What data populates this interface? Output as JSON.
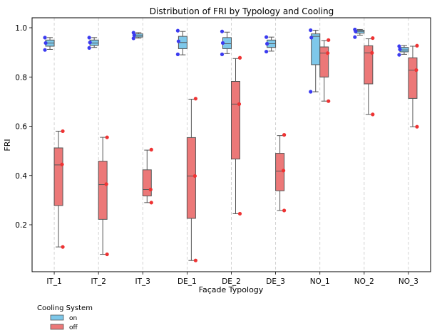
{
  "chart_data": {
    "type": "box",
    "title": "Distribution of FRI by Typology and Cooling",
    "xlabel": "Façade Typology",
    "ylabel": "FRI",
    "categories": [
      "IT_1",
      "IT_2",
      "IT_3",
      "DE_1",
      "DE_2",
      "DE_3",
      "NO_1",
      "NO_2",
      "NO_3"
    ],
    "ylim": [
      0.01,
      1.04
    ],
    "yticks": [
      0.2,
      0.4,
      0.6,
      0.8,
      1.0
    ],
    "ytick_labels": [
      "0.2",
      "0.4",
      "0.6",
      "0.8",
      "1.0"
    ],
    "grid": "vertical dashed at categories",
    "legend": {
      "title": "Cooling System",
      "placement": "below plot, left",
      "entries": [
        "on",
        "off"
      ]
    },
    "series": [
      {
        "name": "on",
        "color": "#7ec8ea",
        "point_color": "#3b3bf0",
        "boxes": [
          {
            "whislo": 0.912,
            "q1": 0.925,
            "med": 0.938,
            "q3": 0.95,
            "whishi": 0.96,
            "points": [
              0.91,
              0.938,
              0.96
            ]
          },
          {
            "whislo": 0.92,
            "q1": 0.928,
            "med": 0.938,
            "q3": 0.95,
            "whishi": 0.96,
            "points": [
              0.918,
              0.94,
              0.96
            ]
          },
          {
            "whislo": 0.958,
            "q1": 0.962,
            "med": 0.968,
            "q3": 0.975,
            "whishi": 0.98,
            "points": [
              0.957,
              0.97,
              0.98
            ]
          },
          {
            "whislo": 0.89,
            "q1": 0.915,
            "med": 0.94,
            "q3": 0.965,
            "whishi": 0.985,
            "points": [
              0.892,
              0.945,
              0.988
            ]
          },
          {
            "whislo": 0.895,
            "q1": 0.915,
            "med": 0.935,
            "q3": 0.96,
            "whishi": 0.982,
            "points": [
              0.892,
              0.938,
              0.985
            ]
          },
          {
            "whislo": 0.905,
            "q1": 0.92,
            "med": 0.935,
            "q3": 0.95,
            "whishi": 0.962,
            "points": [
              0.903,
              0.935,
              0.962
            ]
          },
          {
            "whislo": 0.74,
            "q1": 0.85,
            "med": 0.965,
            "q3": 0.975,
            "whishi": 0.99,
            "points": [
              0.74,
              0.96,
              0.99
            ]
          },
          {
            "whislo": 0.97,
            "q1": 0.978,
            "med": 0.985,
            "q3": 0.99,
            "whishi": 0.993,
            "points": [
              0.962,
              0.985,
              0.993
            ]
          },
          {
            "whislo": 0.892,
            "q1": 0.902,
            "med": 0.91,
            "q3": 0.92,
            "whishi": 0.928,
            "points": [
              0.89,
              0.912,
              0.925
            ]
          }
        ]
      },
      {
        "name": "off",
        "color": "#ec7878",
        "point_color": "#ee3333",
        "boxes": [
          {
            "whislo": 0.11,
            "q1": 0.278,
            "med": 0.443,
            "q3": 0.512,
            "whishi": 0.58,
            "points": [
              0.11,
              0.445,
              0.58
            ]
          },
          {
            "whislo": 0.08,
            "q1": 0.222,
            "med": 0.363,
            "q3": 0.458,
            "whishi": 0.555,
            "points": [
              0.08,
              0.365,
              0.555
            ]
          },
          {
            "whislo": 0.29,
            "q1": 0.317,
            "med": 0.343,
            "q3": 0.423,
            "whishi": 0.503,
            "points": [
              0.29,
              0.343,
              0.505
            ]
          },
          {
            "whislo": 0.055,
            "q1": 0.226,
            "med": 0.398,
            "q3": 0.554,
            "whishi": 0.71,
            "points": [
              0.055,
              0.398,
              0.712
            ]
          },
          {
            "whislo": 0.245,
            "q1": 0.467,
            "med": 0.69,
            "q3": 0.782,
            "whishi": 0.875,
            "points": [
              0.245,
              0.69,
              0.878
            ]
          },
          {
            "whislo": 0.258,
            "q1": 0.338,
            "med": 0.418,
            "q3": 0.49,
            "whishi": 0.562,
            "points": [
              0.258,
              0.42,
              0.565
            ]
          },
          {
            "whislo": 0.702,
            "q1": 0.8,
            "med": 0.897,
            "q3": 0.922,
            "whishi": 0.948,
            "points": [
              0.702,
              0.897,
              0.95
            ]
          },
          {
            "whislo": 0.648,
            "q1": 0.772,
            "med": 0.898,
            "q3": 0.927,
            "whishi": 0.955,
            "points": [
              0.648,
              0.898,
              0.958
            ]
          },
          {
            "whislo": 0.598,
            "q1": 0.713,
            "med": 0.828,
            "q3": 0.878,
            "whishi": 0.925,
            "points": [
              0.598,
              0.828,
              0.927
            ]
          }
        ]
      }
    ]
  }
}
